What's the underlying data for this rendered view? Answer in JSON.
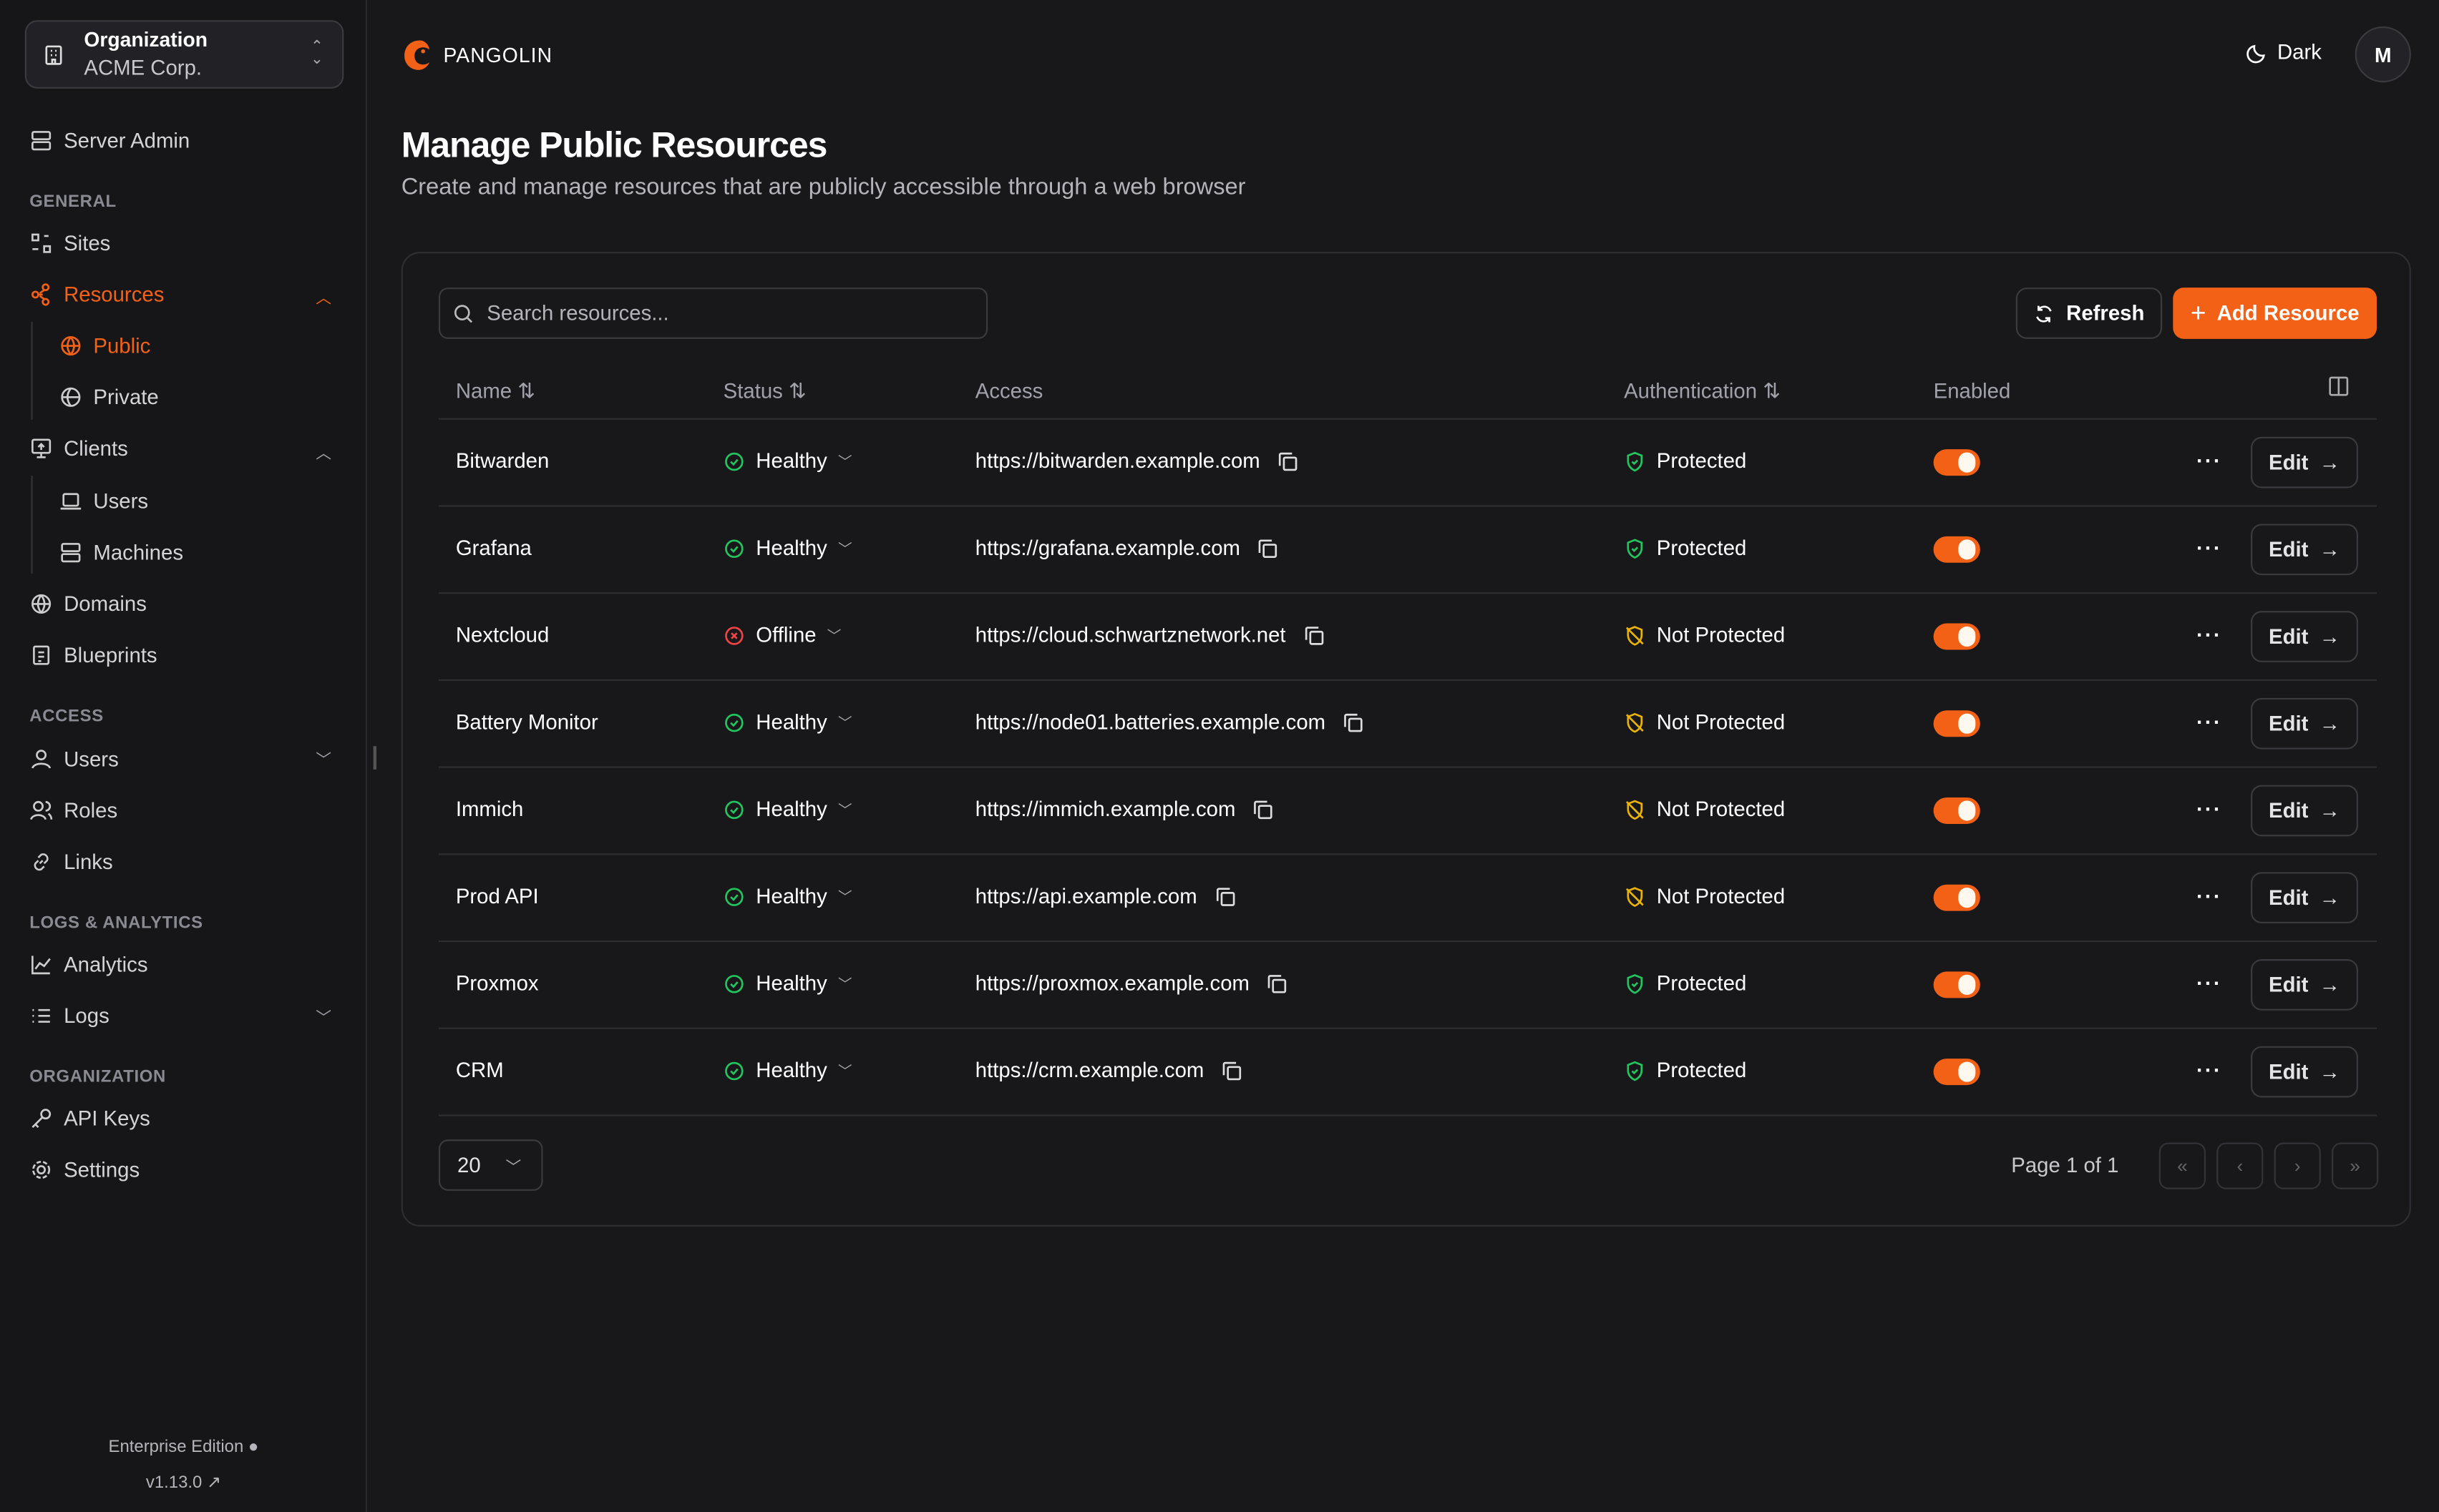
{
  "org": {
    "label": "Organization",
    "name": "ACME Corp."
  },
  "sidebar": {
    "server_admin": "Server Admin",
    "sections": {
      "general": "GENERAL",
      "access": "ACCESS",
      "logs": "LOGS & ANALYTICS",
      "organization": "ORGANIZATION"
    },
    "items": {
      "sites": "Sites",
      "resources": "Resources",
      "public": "Public",
      "private": "Private",
      "clients": "Clients",
      "users_client": "Users",
      "machines": "Machines",
      "domains": "Domains",
      "blueprints": "Blueprints",
      "users": "Users",
      "roles": "Roles",
      "links": "Links",
      "analytics": "Analytics",
      "logs": "Logs",
      "api_keys": "API Keys",
      "settings": "Settings"
    },
    "footer": {
      "edition": "Enterprise Edition",
      "version": "v1.13.0"
    }
  },
  "header": {
    "brand": "PANGOLIN",
    "theme": "Dark",
    "avatar": "M"
  },
  "page": {
    "title": "Manage Public Resources",
    "subtitle": "Create and manage resources that are publicly accessible through a web browser"
  },
  "toolbar": {
    "search_placeholder": "Search resources...",
    "refresh": "Refresh",
    "add": "Add Resource"
  },
  "table": {
    "columns": {
      "name": "Name",
      "status": "Status",
      "access": "Access",
      "auth": "Authentication",
      "enabled": "Enabled"
    },
    "edit_label": "Edit",
    "rows": [
      {
        "name": "Bitwarden",
        "status": "Healthy",
        "access": "https://bitwarden.example.com",
        "auth": "Protected",
        "enabled": true
      },
      {
        "name": "Grafana",
        "status": "Healthy",
        "access": "https://grafana.example.com",
        "auth": "Protected",
        "enabled": true
      },
      {
        "name": "Nextcloud",
        "status": "Offline",
        "access": "https://cloud.schwartznetwork.net",
        "auth": "Not Protected",
        "enabled": true
      },
      {
        "name": "Battery Monitor",
        "status": "Healthy",
        "access": "https://node01.batteries.example.com",
        "auth": "Not Protected",
        "enabled": true
      },
      {
        "name": "Immich",
        "status": "Healthy",
        "access": "https://immich.example.com",
        "auth": "Not Protected",
        "enabled": true
      },
      {
        "name": "Prod API",
        "status": "Healthy",
        "access": "https://api.example.com",
        "auth": "Not Protected",
        "enabled": true
      },
      {
        "name": "Proxmox",
        "status": "Healthy",
        "access": "https://proxmox.example.com",
        "auth": "Protected",
        "enabled": true
      },
      {
        "name": "CRM",
        "status": "Healthy",
        "access": "https://crm.example.com",
        "auth": "Protected",
        "enabled": true
      }
    ]
  },
  "pagination": {
    "page_size": "20",
    "label": "Page 1 of 1"
  },
  "colors": {
    "accent": "#f36117",
    "healthy": "#22c55e",
    "offline": "#ef4444",
    "not_protected": "#eab308",
    "background": "#18181b"
  }
}
